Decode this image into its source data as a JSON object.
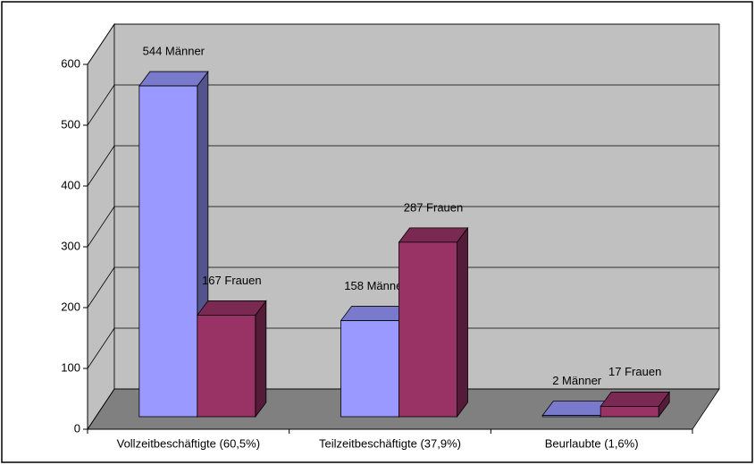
{
  "chart_data": {
    "type": "bar3d",
    "categories": [
      "Vollzeitbeschäftigte (60,5%)",
      "Teilzeitbeschäftigte (37,9%)",
      "Beurlaubte (1,6%)"
    ],
    "series": [
      {
        "color": "#9999ff",
        "values": [
          544,
          158,
          2
        ],
        "value_labels": [
          "544 Männer",
          "158 Männer",
          "2 Männer"
        ]
      },
      {
        "color": "#993366",
        "values": [
          167,
          287,
          17
        ],
        "value_labels": [
          "167 Frauen",
          "287 Frauen",
          "17 Frauen"
        ]
      }
    ],
    "ylim": [
      0,
      600
    ],
    "yticks": [
      0,
      100,
      200,
      300,
      400,
      500,
      600
    ],
    "grid": true
  }
}
